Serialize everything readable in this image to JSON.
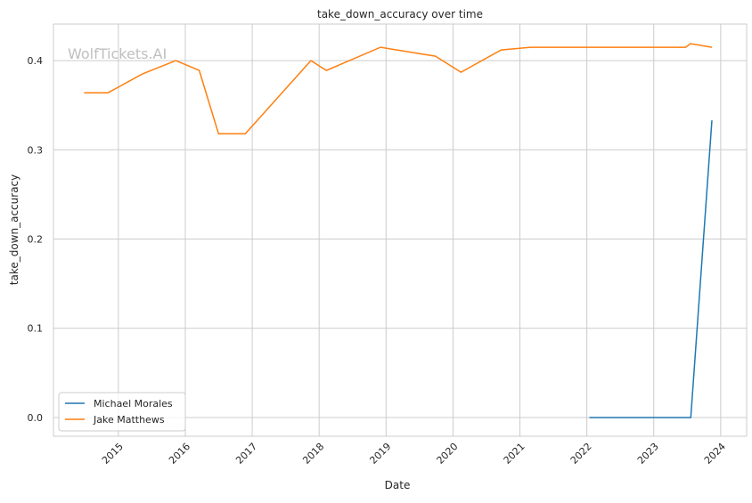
{
  "chart_data": {
    "type": "line",
    "title": "take_down_accuracy over time",
    "xlabel": "Date",
    "ylabel": "take_down_accuracy",
    "watermark": "WolfTickets.AI",
    "xlim": [
      "2014-01-12",
      "2024-05-22"
    ],
    "ylim": [
      -0.021,
      0.441
    ],
    "x_ticks": [
      "2015",
      "2016",
      "2017",
      "2018",
      "2019",
      "2020",
      "2021",
      "2022",
      "2023",
      "2024"
    ],
    "y_ticks": [
      "0.0",
      "0.1",
      "0.2",
      "0.3",
      "0.4"
    ],
    "grid": true,
    "legend_position": "lower-left",
    "series": [
      {
        "name": "Michael Morales",
        "color": "#1f77b4",
        "x": [
          "2022-01-15",
          "2023-07-22",
          "2023-11-14"
        ],
        "y": [
          0.0,
          0.0,
          0.333
        ]
      },
      {
        "name": "Jake Matthews",
        "color": "#ff7f0e",
        "x": [
          "2014-06-28",
          "2014-11-06",
          "2015-05-12",
          "2015-11-10",
          "2016-03-17",
          "2016-07-01",
          "2016-11-24",
          "2017-11-17",
          "2018-02-10",
          "2018-12-02",
          "2019-09-27",
          "2020-02-14",
          "2020-09-20",
          "2021-02-28",
          "2023-06-24",
          "2023-07-20",
          "2023-11-14"
        ],
        "y": [
          0.364,
          0.364,
          0.385,
          0.4,
          0.389,
          0.318,
          0.318,
          0.4,
          0.389,
          0.415,
          0.405,
          0.387,
          0.412,
          0.415,
          0.415,
          0.419,
          0.415
        ]
      }
    ]
  }
}
